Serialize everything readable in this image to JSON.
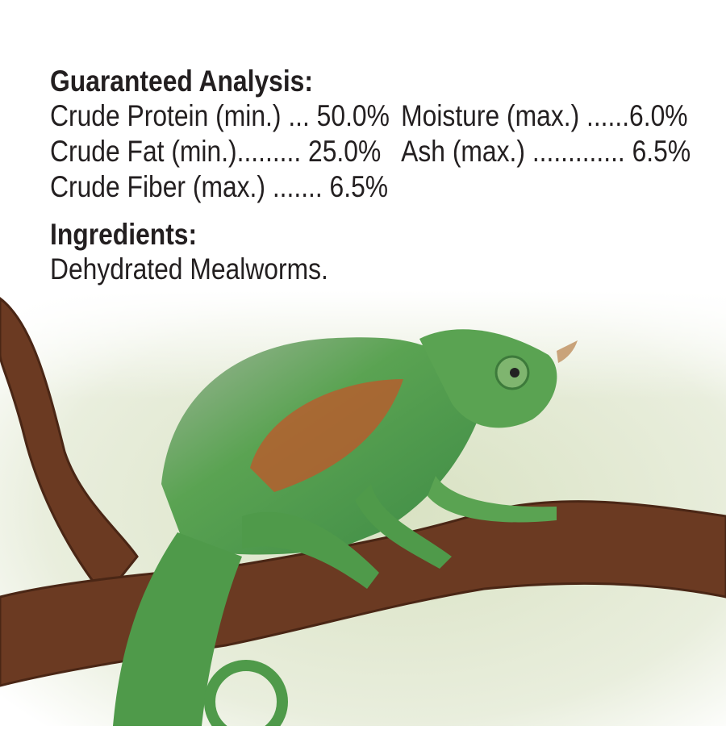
{
  "analysis": {
    "heading": "Guaranteed Analysis:",
    "rows": [
      {
        "left": "Crude Protein (min.) ... 50.0%",
        "right": "Moisture (max.) ......6.0%"
      },
      {
        "left": "Crude Fat (min.)......... 25.0%",
        "right": "Ash (max.) ............. 6.5%"
      },
      {
        "left": "Crude Fiber (max.) ....... 6.5%",
        "right": ""
      }
    ]
  },
  "ingredients": {
    "heading": "Ingredients:",
    "text": "Dehydrated Mealworms."
  },
  "colors": {
    "text": "#231f20",
    "branch": "#6b3a22",
    "chameleon": "#4f9a4a",
    "stripe": "#c2562a",
    "background_haze": "#dfe6cf"
  }
}
